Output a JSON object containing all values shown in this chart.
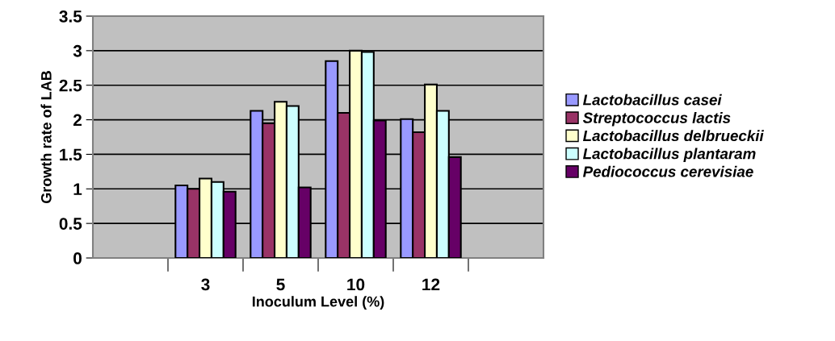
{
  "chart_data": {
    "type": "bar",
    "xlabel": "Inoculum Level (%)",
    "ylabel": "Growth rate of LAB",
    "categories": [
      null,
      "3",
      "5",
      "10",
      "12",
      null
    ],
    "series": [
      {
        "name": "Lactobacillus casei",
        "color": "#9999ff",
        "values": [
          null,
          1.05,
          2.13,
          2.85,
          2.01,
          null
        ]
      },
      {
        "name": "Streptococcus lactis",
        "color": "#993366",
        "values": [
          null,
          1.0,
          1.95,
          2.1,
          1.82,
          null
        ]
      },
      {
        "name": "Lactobacillus delbrueckii",
        "color": "#ffffcc",
        "values": [
          null,
          1.15,
          2.26,
          3.0,
          2.51,
          null
        ]
      },
      {
        "name": "Lactobacillus plantaram",
        "color": "#ccffff",
        "values": [
          null,
          1.1,
          2.2,
          2.98,
          2.13,
          null
        ]
      },
      {
        "name": "Pediococcus cerevisiae",
        "color": "#660066",
        "values": [
          null,
          0.96,
          1.02,
          1.99,
          1.46,
          null
        ]
      }
    ],
    "ylim": [
      0,
      3.5
    ],
    "yticks": [
      0,
      0.5,
      1,
      1.5,
      2,
      2.5,
      3,
      3.5
    ],
    "grid": "y",
    "legend": "right"
  }
}
